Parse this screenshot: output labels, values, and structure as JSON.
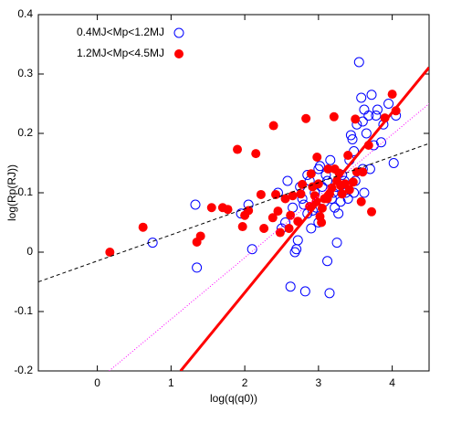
{
  "chart_data": {
    "type": "scatter",
    "xlabel": "log(q(q0))",
    "ylabel": "log(Rp(RJ))",
    "xlim": [
      -0.8,
      4.5
    ],
    "ylim": [
      -0.2,
      0.4
    ],
    "xticks": [
      0,
      1,
      2,
      3,
      4
    ],
    "yticks": [
      -0.2,
      -0.1,
      0,
      0.1,
      0.2,
      0.3,
      0.4
    ],
    "legend": "top-left",
    "series": [
      {
        "name": "0.4MJ<Mp<1.2MJ",
        "color": "#0000ff",
        "marker": "open",
        "x": [
          0.75,
          1.33,
          1.35,
          1.95,
          2.05,
          2.1,
          2.45,
          2.5,
          2.55,
          2.58,
          2.62,
          2.65,
          2.68,
          2.7,
          2.72,
          2.75,
          2.78,
          2.8,
          2.82,
          2.85,
          2.88,
          2.9,
          2.92,
          2.95,
          2.97,
          3.0,
          3.02,
          3.05,
          3.08,
          3.1,
          3.12,
          3.15,
          3.16,
          3.18,
          3.2,
          3.22,
          3.24,
          3.25,
          3.27,
          3.3,
          3.32,
          3.35,
          3.38,
          3.4,
          3.42,
          3.44,
          3.46,
          3.48,
          3.5,
          3.52,
          3.55,
          3.58,
          3.6,
          3.62,
          3.65,
          3.68,
          3.7,
          3.72,
          3.75,
          3.78,
          3.8,
          3.85,
          3.88,
          3.95,
          4.05,
          4.02,
          3.6,
          3.37,
          3.12,
          3.0,
          2.85,
          3.48,
          3.62
        ],
        "values": [
          0.016,
          0.08,
          -0.026,
          0.065,
          0.08,
          0.005,
          0.1,
          0.04,
          0.05,
          0.12,
          -0.058,
          0.075,
          0.0,
          0.005,
          0.02,
          0.11,
          0.09,
          0.08,
          -0.066,
          0.13,
          0.12,
          0.04,
          0.07,
          0.1,
          0.075,
          0.14,
          0.145,
          0.11,
          0.085,
          0.13,
          0.12,
          -0.069,
          0.155,
          0.09,
          0.1,
          0.075,
          0.11,
          0.016,
          0.065,
          0.085,
          0.13,
          0.12,
          0.11,
          0.09,
          0.155,
          0.197,
          0.19,
          0.17,
          0.12,
          0.215,
          0.32,
          0.26,
          0.22,
          0.24,
          0.2,
          0.23,
          0.14,
          0.265,
          0.18,
          0.23,
          0.24,
          0.185,
          0.215,
          0.25,
          0.23,
          0.15,
          0.14,
          0.1,
          -0.015,
          0.05,
          0.065,
          0.1,
          0.1
        ]
      },
      {
        "name": "1.2MJ<Mp<4.5MJ",
        "color": "#ff0000",
        "marker": "filled",
        "x": [
          0.17,
          0.62,
          1.35,
          1.4,
          1.55,
          1.7,
          1.77,
          1.9,
          1.97,
          2.0,
          2.15,
          2.22,
          2.39,
          2.38,
          2.42,
          2.45,
          2.48,
          2.55,
          2.6,
          2.62,
          2.65,
          2.72,
          2.76,
          2.78,
          2.83,
          2.88,
          2.9,
          2.92,
          2.95,
          2.97,
          2.98,
          3.0,
          3.02,
          3.04,
          3.05,
          3.08,
          3.12,
          3.13,
          3.15,
          3.18,
          3.21,
          3.22,
          3.25,
          3.28,
          3.3,
          3.32,
          3.36,
          3.4,
          3.42,
          3.47,
          3.5,
          3.52,
          3.58,
          3.6,
          3.68,
          3.72,
          3.9,
          4.0,
          4.05,
          2.26,
          2.05
        ],
        "values": [
          0.0,
          0.042,
          0.017,
          0.027,
          0.075,
          0.075,
          0.072,
          0.173,
          0.043,
          0.062,
          0.166,
          0.097,
          0.213,
          0.058,
          0.097,
          0.069,
          0.033,
          0.09,
          0.04,
          0.062,
          0.095,
          0.052,
          0.098,
          0.114,
          0.225,
          0.077,
          0.132,
          0.11,
          0.095,
          0.085,
          0.16,
          0.115,
          0.06,
          0.05,
          0.074,
          0.09,
          0.09,
          0.14,
          0.098,
          0.108,
          0.228,
          0.14,
          0.12,
          0.133,
          0.112,
          0.098,
          0.115,
          0.163,
          0.105,
          0.118,
          0.224,
          0.135,
          0.085,
          0.135,
          0.18,
          0.068,
          0.226,
          0.266,
          0.238,
          0.04,
          0.07
        ]
      }
    ],
    "fit_lines": [
      {
        "x": [
          -0.8,
          4.5
        ],
        "values": [
          -0.05,
          0.183
        ],
        "color": "#000000",
        "dash": "dashed",
        "width": 1
      },
      {
        "x": [
          0.16,
          4.5
        ],
        "values": [
          -0.2,
          0.25
        ],
        "color": "#ff00ff",
        "dash": "dotted",
        "width": 1
      },
      {
        "x": [
          1.13,
          4.5
        ],
        "values": [
          -0.2,
          0.311
        ],
        "color": "#ff0000",
        "dash": "solid",
        "width": 3
      }
    ]
  }
}
